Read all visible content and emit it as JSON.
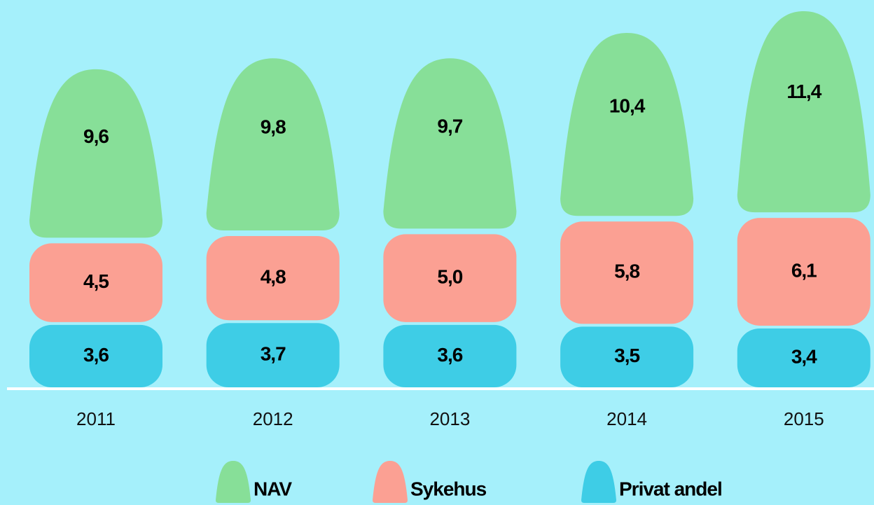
{
  "chart_data": {
    "type": "stacked-bar",
    "categories": [
      "2011",
      "2012",
      "2013",
      "2014",
      "2015"
    ],
    "series": [
      {
        "name": "NAV",
        "color": "#87df98",
        "values": [
          9.6,
          9.8,
          9.7,
          10.4,
          11.4
        ],
        "value_labels": [
          "9,6",
          "9,8",
          "9,7",
          "10,4",
          "11,4"
        ]
      },
      {
        "name": "Sykehus",
        "color": "#fba093",
        "values": [
          4.5,
          4.8,
          5.0,
          5.8,
          6.1
        ],
        "value_labels": [
          "4,5",
          "4,8",
          "5,0",
          "5,8",
          "6,1"
        ]
      },
      {
        "name": "Privat andel",
        "color": "#3ecde6",
        "values": [
          3.6,
          3.7,
          3.6,
          3.5,
          3.4
        ],
        "value_labels": [
          "3,6",
          "3,7",
          "3,6",
          "3,5",
          "3,4"
        ]
      }
    ]
  }
}
